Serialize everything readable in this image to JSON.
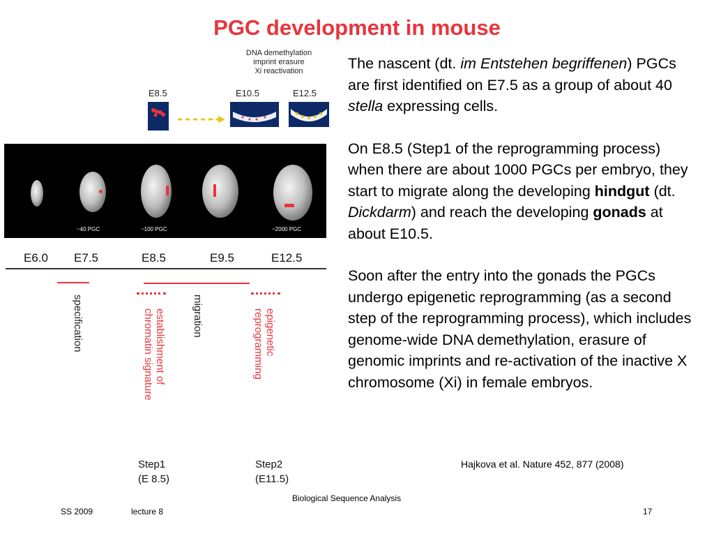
{
  "slide": {
    "title": "PGC development in mouse",
    "paragraphs": {
      "p1": {
        "t1": "The nascent (dt. ",
        "i1": "im Entstehen begriffenen",
        "t2": ") PGCs are first identified on E7.5 as a group of about 40 ",
        "i2": "stella",
        "t3": " expressing cells."
      },
      "p2": {
        "t1": "On E8.5 (Step1 of the reprogramming process) when there are about 1000 PGCs per embryo, they start to migrate along the developing ",
        "b1": "hindgut",
        "t2": " (dt. ",
        "i1": "Dickdarm",
        "t3": ") and reach the developing ",
        "b2": "gonads",
        "t4": " at about E10.5."
      },
      "p3": "Soon after the entry into the gonads the PGCs undergo epigenetic reprogramming (as a second step of the reprogramming process), which includes genome-wide DNA demethylation, erasure of genomic imprints and re-activation of the inactive X chromosome (Xi) in female embryos."
    },
    "citation": "Hajkova et al. Nature 452, 877 (2008)"
  },
  "figure": {
    "dna_labels": [
      "DNA demethylation",
      "imprint erasure",
      "Xi reactivation"
    ],
    "top_labels": {
      "e85": "E8.5",
      "e105": "E10.5",
      "e125": "E12.5"
    },
    "pgc_counts": {
      "c40": "~40 PGC",
      "c100": "~100 PGC",
      "c2000": "~2000 PGC"
    },
    "stages": [
      "E6.0",
      "E7.5",
      "E8.5",
      "E9.5",
      "E12.5"
    ],
    "processes": {
      "specification": "specification",
      "establishment_l1": "establishment of",
      "establishment_l2": "chromatin signature",
      "migration": "migration",
      "epigenetic_l1": "epigenetic",
      "epigenetic_l2": "reprogramming"
    },
    "steps": {
      "step1_name": "Step1",
      "step1_time": "(E 8.5)",
      "step2_name": "Step2",
      "step2_time": "(E11.5)"
    },
    "colors": {
      "accent": "#e8353d",
      "thumb": "#0e2a66"
    }
  },
  "footer": {
    "course": "Biological Sequence Analysis",
    "term": "SS 2009",
    "lecture": "lecture 8",
    "page": "17"
  }
}
